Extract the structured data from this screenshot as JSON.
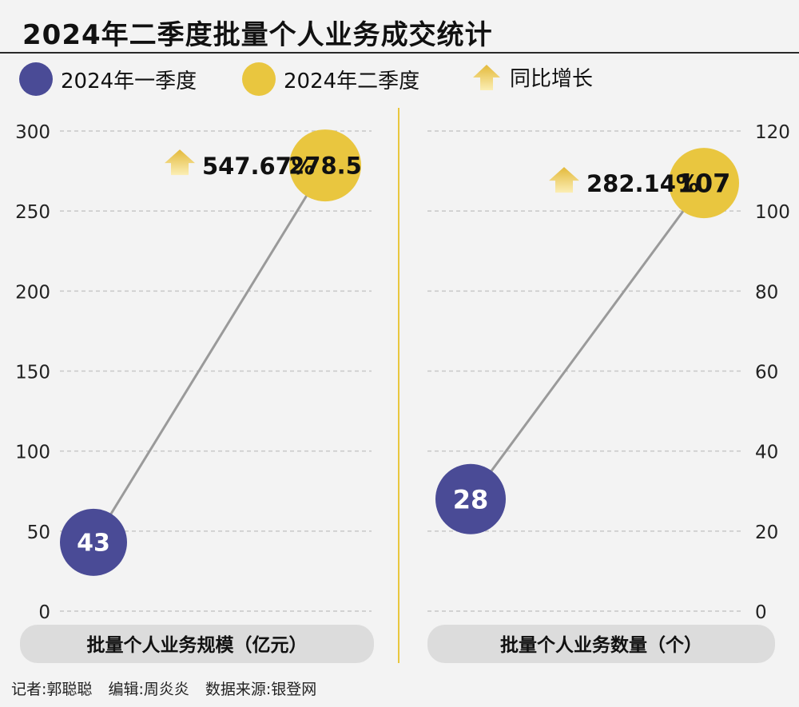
{
  "title": "2024年二季度批量个人业务成交统计",
  "legend": {
    "q1": "2024年一季度",
    "q2": "2024年二季度",
    "growth": "同比增长"
  },
  "colors": {
    "q1": "#4a4b96",
    "q2": "#e9c63f",
    "arrow": "#e9c63f",
    "line": "#9a9a9a",
    "grid": "#c8c8c8",
    "divider": "#e9c63f",
    "label_bg": "#dcdcdc"
  },
  "chart_data": [
    {
      "type": "line",
      "xlabel": "批量个人业务规模（亿元）",
      "y_axis_side": "left",
      "ylim": [
        0,
        300
      ],
      "yticks": [
        "300",
        "250",
        "200",
        "150",
        "100",
        "50",
        "0"
      ],
      "points": [
        {
          "series": "2024年一季度",
          "value": 43,
          "label": "43"
        },
        {
          "series": "2024年二季度",
          "value": 278.5,
          "label": "278.5"
        }
      ],
      "growth": "547.67%"
    },
    {
      "type": "line",
      "xlabel": "批量个人业务数量（个）",
      "y_axis_side": "right",
      "ylim": [
        0,
        120
      ],
      "yticks": [
        "120",
        "100",
        "80",
        "60",
        "40",
        "20",
        "0"
      ],
      "points": [
        {
          "series": "2024年一季度",
          "value": 28,
          "label": "28"
        },
        {
          "series": "2024年二季度",
          "value": 107,
          "label": "107"
        }
      ],
      "growth": "282.14%"
    }
  ],
  "footer": {
    "reporter": "记者:郭聪聪",
    "editor": "编辑:周炎炎",
    "source": "数据来源:银登网"
  }
}
